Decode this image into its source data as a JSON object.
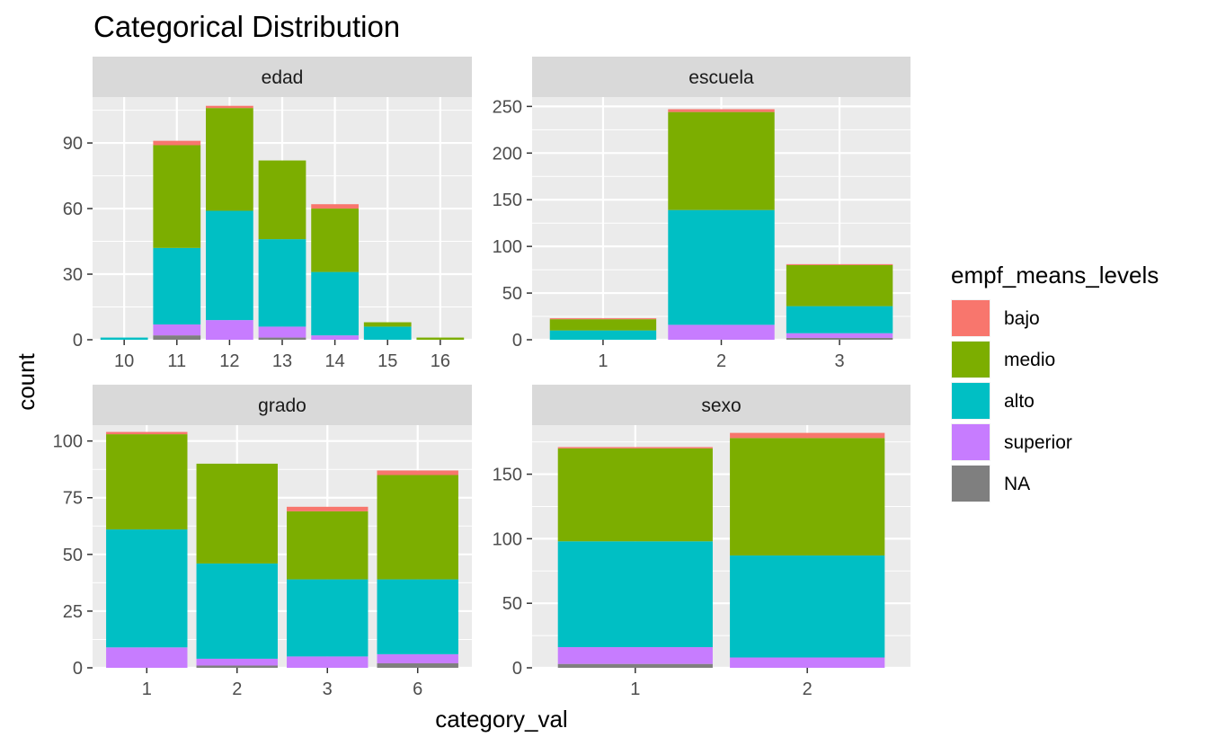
{
  "chart_data": {
    "type": "bar",
    "stacked": true,
    "title": "Categorical Distribution",
    "xlabel": "category_val",
    "ylabel": "count",
    "grid": true,
    "legend": {
      "title": "empf_means_levels",
      "position": "right",
      "entries": [
        {
          "name": "bajo",
          "color": "#F8766D"
        },
        {
          "name": "medio",
          "color": "#7CAE00"
        },
        {
          "name": "alto",
          "color": "#00BFC4"
        },
        {
          "name": "superior",
          "color": "#C77CFF"
        },
        {
          "name": "NA",
          "color": "#7F7F7F"
        }
      ]
    },
    "facets": [
      {
        "name": "edad",
        "categories": [
          "10",
          "11",
          "12",
          "13",
          "14",
          "15",
          "16"
        ],
        "ylim": [
          0,
          111
        ],
        "yticks": [
          0,
          30,
          60,
          90
        ],
        "series": [
          {
            "name": "NA",
            "values": [
              0,
              2,
              0,
              1,
              0,
              0,
              0
            ]
          },
          {
            "name": "superior",
            "values": [
              0,
              5,
              9,
              5,
              2,
              0,
              0
            ]
          },
          {
            "name": "alto",
            "values": [
              1,
              35,
              50,
              40,
              29,
              6,
              0
            ]
          },
          {
            "name": "medio",
            "values": [
              0,
              47,
              47,
              36,
              29,
              2,
              1
            ]
          },
          {
            "name": "bajo",
            "values": [
              0,
              2,
              1,
              0,
              2,
              0,
              0
            ]
          }
        ]
      },
      {
        "name": "escuela",
        "categories": [
          "1",
          "2",
          "3"
        ],
        "ylim": [
          0,
          260
        ],
        "yticks": [
          0,
          50,
          100,
          150,
          200,
          250
        ],
        "series": [
          {
            "name": "NA",
            "values": [
              0,
              0,
              2
            ]
          },
          {
            "name": "superior",
            "values": [
              0,
              16,
              5
            ]
          },
          {
            "name": "alto",
            "values": [
              10,
              123,
              29
            ]
          },
          {
            "name": "medio",
            "values": [
              12,
              105,
              44
            ]
          },
          {
            "name": "bajo",
            "values": [
              1,
              3,
              1
            ]
          }
        ]
      },
      {
        "name": "grado",
        "categories": [
          "1",
          "2",
          "3",
          "6"
        ],
        "ylim": [
          0,
          107
        ],
        "yticks": [
          0,
          25,
          50,
          75,
          100
        ],
        "series": [
          {
            "name": "NA",
            "values": [
              0,
              1,
              0,
              2
            ]
          },
          {
            "name": "superior",
            "values": [
              9,
              3,
              5,
              4
            ]
          },
          {
            "name": "alto",
            "values": [
              52,
              42,
              34,
              33
            ]
          },
          {
            "name": "medio",
            "values": [
              42,
              44,
              30,
              46
            ]
          },
          {
            "name": "bajo",
            "values": [
              1,
              0,
              2,
              2
            ]
          }
        ]
      },
      {
        "name": "sexo",
        "categories": [
          "1",
          "2"
        ],
        "ylim": [
          0,
          188
        ],
        "yticks": [
          0,
          50,
          100,
          150
        ],
        "series": [
          {
            "name": "NA",
            "values": [
              3,
              0
            ]
          },
          {
            "name": "superior",
            "values": [
              13,
              8
            ]
          },
          {
            "name": "alto",
            "values": [
              82,
              79
            ]
          },
          {
            "name": "medio",
            "values": [
              72,
              91
            ]
          },
          {
            "name": "bajo",
            "values": [
              1,
              4
            ]
          }
        ]
      }
    ]
  }
}
